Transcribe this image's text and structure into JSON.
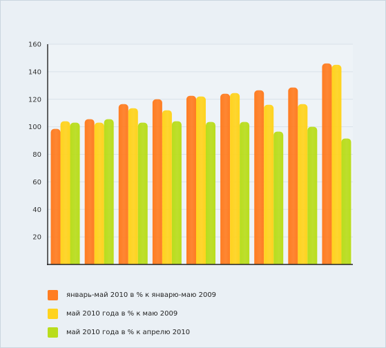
{
  "chart_data": {
    "type": "bar",
    "title": "",
    "xlabel": "",
    "ylabel": "",
    "ylim": [
      0,
      160
    ],
    "yticks": [
      20,
      40,
      60,
      80,
      100,
      120,
      140,
      160
    ],
    "grid": true,
    "legend_position": "bottom",
    "categories": [
      "",
      "",
      "",
      "",
      "",
      "",
      "",
      "",
      ""
    ],
    "series": [
      {
        "name": "январь-май 2010 в % к январю-маю 2009",
        "color": "#ff7d22",
        "values": [
          98.5,
          105.5,
          116.5,
          120,
          122.5,
          124,
          126.5,
          128.5,
          146
        ]
      },
      {
        "name": "май 2010 года в % к маю 2009",
        "color": "#ffd31e",
        "values": [
          104,
          103,
          113.5,
          112,
          122,
          124.5,
          116,
          116.5,
          145
        ]
      },
      {
        "name": "май 2010 года в % к  апрелю 2010",
        "color": "#b9dd1c",
        "values": [
          103,
          105.5,
          103,
          104,
          103.5,
          103.5,
          96.5,
          100,
          91.5
        ]
      }
    ]
  }
}
